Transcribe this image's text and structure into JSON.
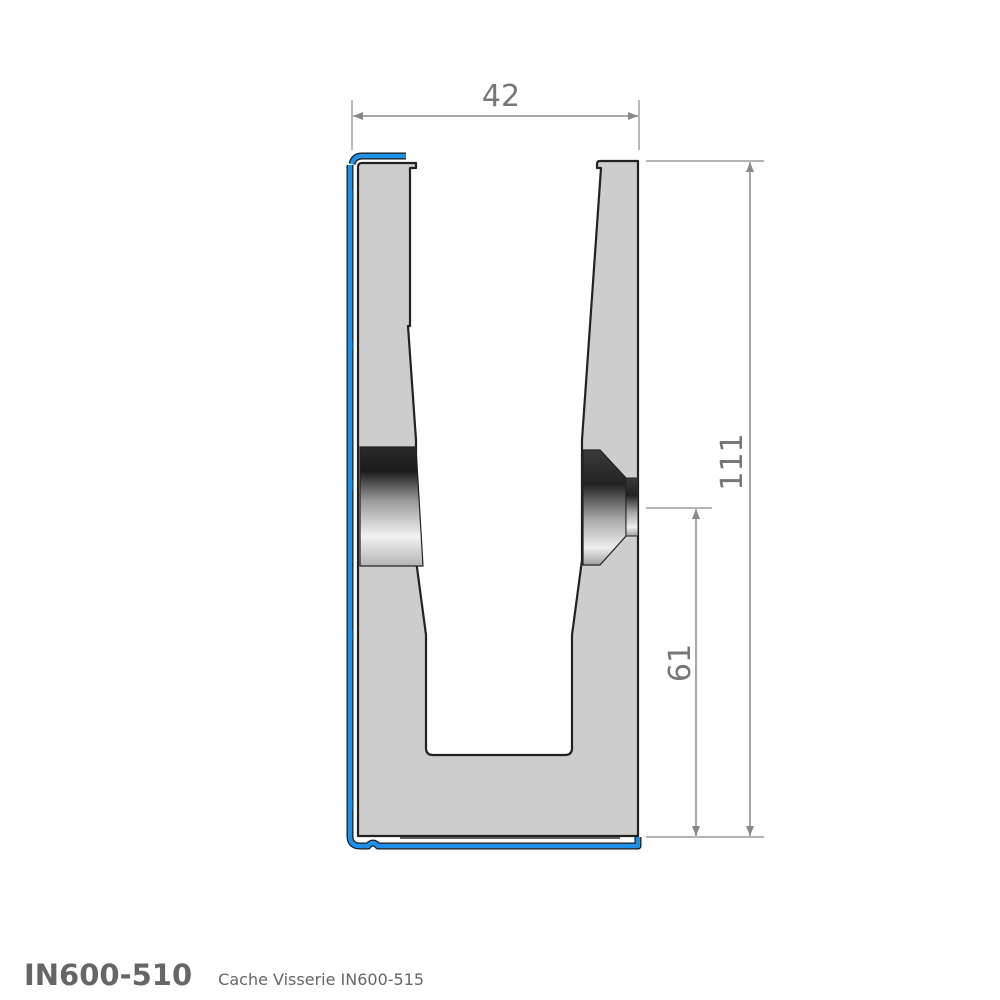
{
  "dimensions": {
    "width": "42",
    "height": "111",
    "bolt_height": "61"
  },
  "footer": {
    "product_code": "IN600-510",
    "description": "Cache Visserie IN600-515"
  },
  "colors": {
    "profile": "#cdcdcd",
    "cover": "#1e90e6",
    "dimension": "#888888",
    "outline": "#222222"
  }
}
